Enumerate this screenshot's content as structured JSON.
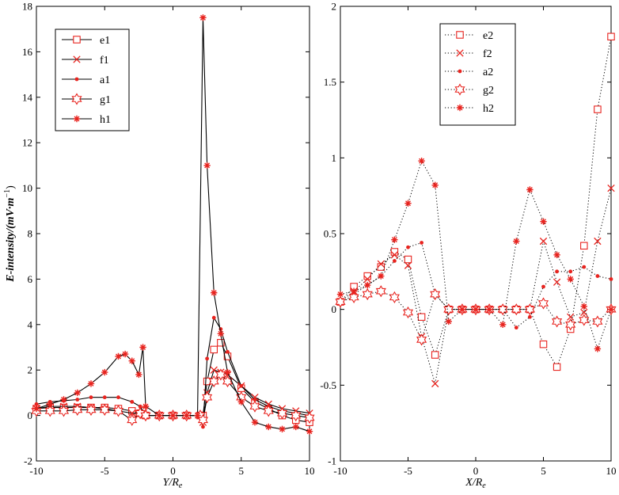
{
  "chart_data": [
    {
      "type": "line",
      "panel": "left",
      "xlabel": "Y/R",
      "xlabel_sub": "e",
      "ylabel": "E-intensity/(mV·m",
      "ylabel_sup": "−1",
      "ylabel_end": ")",
      "xlim": [
        -10,
        10
      ],
      "ylim": [
        -2,
        18
      ],
      "xticks": [
        "-10",
        "-5",
        "0",
        "5",
        "10"
      ],
      "yticks": [
        "-2",
        "0",
        "2",
        "4",
        "6",
        "8",
        "10",
        "12",
        "14",
        "16",
        "18"
      ],
      "legend_position": "top-left",
      "series": [
        {
          "name": "e1",
          "marker": "square",
          "line": "solid",
          "x": [
            -10,
            -9,
            -8,
            -7,
            -6,
            -5,
            -4,
            -3,
            -2.4,
            -2.2,
            -2,
            -1,
            0,
            1,
            2,
            2.2,
            2.5,
            3,
            3.5,
            4,
            5,
            6,
            7,
            8,
            9,
            10
          ],
          "y": [
            0.3,
            0.35,
            0.35,
            0.35,
            0.35,
            0.35,
            0.3,
            0.2,
            0.1,
            0.2,
            0,
            0,
            0,
            0,
            0,
            0,
            1.5,
            2.9,
            3.2,
            2.6,
            1.2,
            0.6,
            0.3,
            0,
            -0.2,
            -0.3
          ]
        },
        {
          "name": "f1",
          "marker": "x",
          "line": "solid",
          "x": [
            -10,
            -9,
            -8,
            -7,
            -6,
            -5,
            -4,
            -3,
            -2.4,
            -2,
            -1,
            0,
            1,
            2,
            2.2,
            2.5,
            3,
            3.5,
            4,
            5,
            6,
            7,
            8,
            9,
            10
          ],
          "y": [
            0.3,
            0.4,
            0.4,
            0.4,
            0.35,
            0.3,
            0.2,
            0.1,
            0.1,
            0,
            0,
            0,
            0,
            0,
            -0.3,
            1.0,
            2.0,
            1.9,
            1.8,
            1.3,
            0.8,
            0.5,
            0.3,
            0.2,
            0.1
          ]
        },
        {
          "name": "a1",
          "marker": "dot",
          "line": "solid",
          "x": [
            -10,
            -9,
            -8,
            -7,
            -6,
            -5,
            -4,
            -3,
            -2.4,
            -2,
            -1,
            0,
            1,
            2,
            2.2,
            2.5,
            3,
            3.5,
            4,
            5,
            6,
            7,
            8,
            9,
            10
          ],
          "y": [
            0.5,
            0.6,
            0.65,
            0.7,
            0.8,
            0.8,
            0.8,
            0.6,
            0.4,
            0,
            0,
            0,
            0,
            0,
            -0.5,
            2.5,
            4.3,
            3.8,
            2.8,
            1.3,
            0.7,
            0.4,
            0.2,
            0.1,
            0
          ]
        },
        {
          "name": "g1",
          "marker": "hexagram",
          "line": "solid",
          "x": [
            -10,
            -9,
            -8,
            -7,
            -6,
            -5,
            -4,
            -3,
            -2.4,
            -2,
            -1,
            0,
            1,
            2,
            2.2,
            2.5,
            3,
            3.5,
            4,
            5,
            6,
            7,
            8,
            9,
            10
          ],
          "y": [
            0.2,
            0.2,
            0.2,
            0.25,
            0.25,
            0.25,
            0.2,
            -0.2,
            0.1,
            0,
            0,
            0,
            0,
            0,
            -0.2,
            0.8,
            1.5,
            1.8,
            1.5,
            0.8,
            0.4,
            0.2,
            0.1,
            0,
            -0.1
          ]
        },
        {
          "name": "h1",
          "marker": "asterisk",
          "line": "solid",
          "x": [
            -10,
            -9,
            -8,
            -7,
            -6,
            -5,
            -4,
            -3.5,
            -3,
            -2.5,
            -2.2,
            -2,
            -1,
            0,
            1,
            1.8,
            2.2,
            2.5,
            3,
            3.5,
            4,
            5,
            6,
            7,
            8,
            9,
            10
          ],
          "y": [
            0.3,
            0.5,
            0.7,
            1.0,
            1.4,
            1.9,
            2.6,
            2.7,
            2.4,
            1.8,
            3.0,
            0.4,
            0,
            0,
            0,
            0,
            17.5,
            11.0,
            5.4,
            3.6,
            1.9,
            0.6,
            -0.3,
            -0.5,
            -0.6,
            -0.5,
            -0.7
          ]
        }
      ]
    },
    {
      "type": "line",
      "panel": "right",
      "xlabel": "X/R",
      "xlabel_sub": "e",
      "xlim": [
        -10,
        10
      ],
      "ylim": [
        -1,
        2
      ],
      "xticks": [
        "-10",
        "-5",
        "0",
        "5",
        "10"
      ],
      "yticks": [
        "-1",
        "-0.5",
        "0",
        "0.5",
        "1",
        "1.5",
        "2"
      ],
      "legend_position": "top-center",
      "series": [
        {
          "name": "e2",
          "marker": "square",
          "line": "dotted",
          "x": [
            -10,
            -9,
            -8,
            -7,
            -6,
            -5,
            -4,
            -3,
            -2,
            -1,
            0,
            1,
            2,
            3,
            4,
            5,
            6,
            7,
            8,
            9,
            10
          ],
          "y": [
            0.05,
            0.15,
            0.22,
            0.28,
            0.38,
            0.33,
            -0.05,
            -0.3,
            0,
            0,
            0,
            0,
            0,
            0,
            0,
            -0.23,
            -0.38,
            -0.13,
            0.42,
            1.32,
            1.8
          ]
        },
        {
          "name": "f2",
          "marker": "x",
          "line": "dotted",
          "x": [
            -10,
            -9,
            -8,
            -7,
            -6,
            -5,
            -4,
            -3,
            -2,
            -1,
            0,
            1,
            2,
            3,
            4,
            5,
            6,
            7,
            8,
            9,
            10
          ],
          "y": [
            0.05,
            0.12,
            0.2,
            0.3,
            0.36,
            0.29,
            -0.18,
            -0.49,
            0,
            0,
            0,
            0,
            0,
            0,
            0,
            0.45,
            0.18,
            -0.05,
            -0.02,
            0.45,
            0.8
          ]
        },
        {
          "name": "a2",
          "marker": "dot",
          "line": "dotted",
          "x": [
            -10,
            -9,
            -8,
            -7,
            -6,
            -5,
            -4,
            -3,
            -2,
            -1,
            0,
            1,
            2,
            3,
            4,
            5,
            6,
            7,
            8,
            9,
            10
          ],
          "y": [
            0.04,
            0.1,
            0.16,
            0.22,
            0.32,
            0.41,
            0.44,
            0.1,
            0,
            0,
            0,
            0,
            0,
            -0.12,
            -0.05,
            0.15,
            0.25,
            0.25,
            0.28,
            0.22,
            0.2
          ]
        },
        {
          "name": "g2",
          "marker": "hexagram",
          "line": "dotted",
          "x": [
            -10,
            -9,
            -8,
            -7,
            -6,
            -5,
            -4,
            -3,
            -2,
            -1,
            0,
            1,
            2,
            3,
            4,
            5,
            6,
            7,
            8,
            9,
            10
          ],
          "y": [
            0.05,
            0.08,
            0.1,
            0.12,
            0.08,
            -0.02,
            -0.2,
            0.1,
            0,
            0,
            0,
            0,
            0,
            0,
            0,
            0.04,
            -0.08,
            -0.1,
            -0.07,
            -0.08,
            0
          ]
        },
        {
          "name": "h2",
          "marker": "asterisk",
          "line": "dotted",
          "x": [
            -10,
            -9,
            -8,
            -7,
            -6,
            -5,
            -4,
            -3,
            -2,
            -1,
            0,
            1,
            2,
            3,
            4,
            5,
            6,
            7,
            8,
            9,
            10
          ],
          "y": [
            0.1,
            0.12,
            0.16,
            0.22,
            0.46,
            0.7,
            0.98,
            0.82,
            -0.08,
            0,
            0,
            0,
            -0.1,
            0.45,
            0.79,
            0.58,
            0.36,
            0.2,
            0.02,
            -0.26,
            0
          ]
        }
      ]
    }
  ]
}
